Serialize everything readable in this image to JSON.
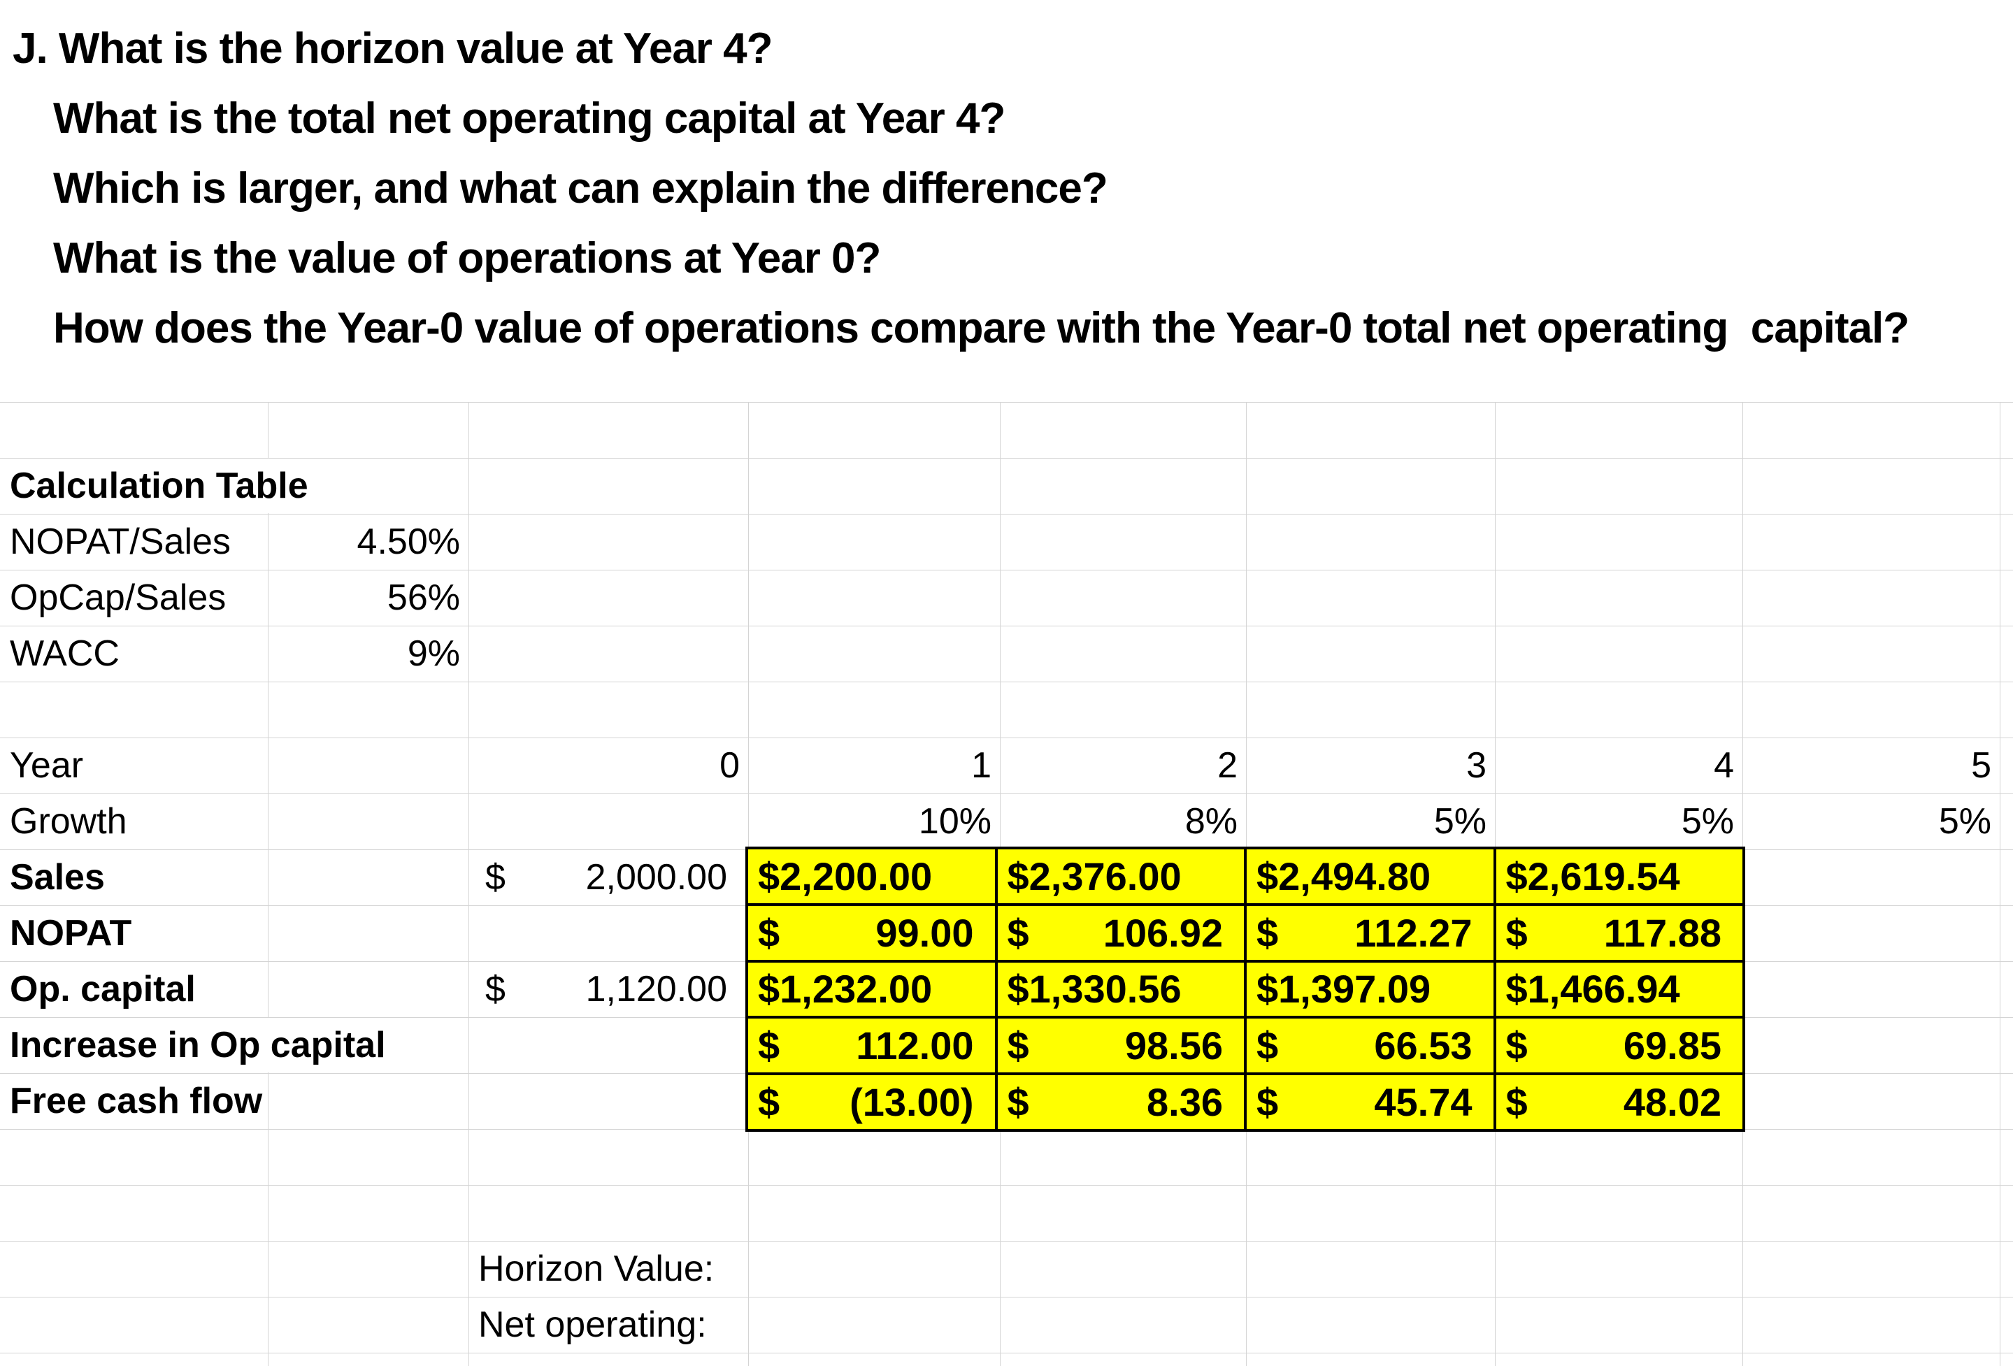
{
  "questions": [
    "J. What is the horizon value at Year 4?",
    "What is the total net operating capital at Year 4?",
    "Which is larger, and what can explain the difference?",
    "What is the value of operations at Year 0?",
    "How does the Year-0 value of operations compare with the Year-0 total net operating  capital?"
  ],
  "calc_table": {
    "title": "Calculation Table",
    "rows": [
      {
        "label": "NOPAT/Sales",
        "value": "4.50%"
      },
      {
        "label": "OpCap/Sales",
        "value": "56%"
      },
      {
        "label": "WACC",
        "value": "9%"
      }
    ]
  },
  "timeline": {
    "year_label": "Year",
    "growth_label": "Growth",
    "years": [
      "0",
      "1",
      "2",
      "3",
      "4",
      "5"
    ],
    "growth": [
      "10%",
      "8%",
      "5%",
      "5%",
      "5%"
    ]
  },
  "data_rows": {
    "sales": {
      "label": "Sales",
      "year0": {
        "currency": "$",
        "value": "2,000.00"
      },
      "y1": "$2,200.00",
      "y2": "$2,376.00",
      "y3": "$2,494.80",
      "y4": "$2,619.54"
    },
    "nopat": {
      "label": "NOPAT",
      "y1": {
        "currency": "$",
        "value": "99.00"
      },
      "y2": {
        "currency": "$",
        "value": "106.92"
      },
      "y3": {
        "currency": "$",
        "value": "112.27"
      },
      "y4": {
        "currency": "$",
        "value": "117.88"
      }
    },
    "op_capital": {
      "label": "Op. capital",
      "year0": {
        "currency": "$",
        "value": "1,120.00"
      },
      "y1": "$1,232.00",
      "y2": "$1,330.56",
      "y3": "$1,397.09",
      "y4": "$1,466.94"
    },
    "increase_op_capital": {
      "label": "Increase in Op capital",
      "y1": {
        "currency": "$",
        "value": "112.00"
      },
      "y2": {
        "currency": "$",
        "value": "98.56"
      },
      "y3": {
        "currency": "$",
        "value": "66.53"
      },
      "y4": {
        "currency": "$",
        "value": "69.85"
      }
    },
    "free_cash_flow": {
      "label": "Free cash flow",
      "y1": {
        "currency": "$",
        "value": "(13.00)"
      },
      "y2": {
        "currency": "$",
        "value": "8.36"
      },
      "y3": {
        "currency": "$",
        "value": "45.74"
      },
      "y4": {
        "currency": "$",
        "value": "48.02"
      }
    }
  },
  "footer": {
    "horizon_value_label": "Horizon Value:",
    "net_operating_label": "Net operating:"
  },
  "colors": {
    "highlight_yellow": "#FFFF00",
    "gridline_gray": "#D4D4D4",
    "text_black": "#000000"
  }
}
